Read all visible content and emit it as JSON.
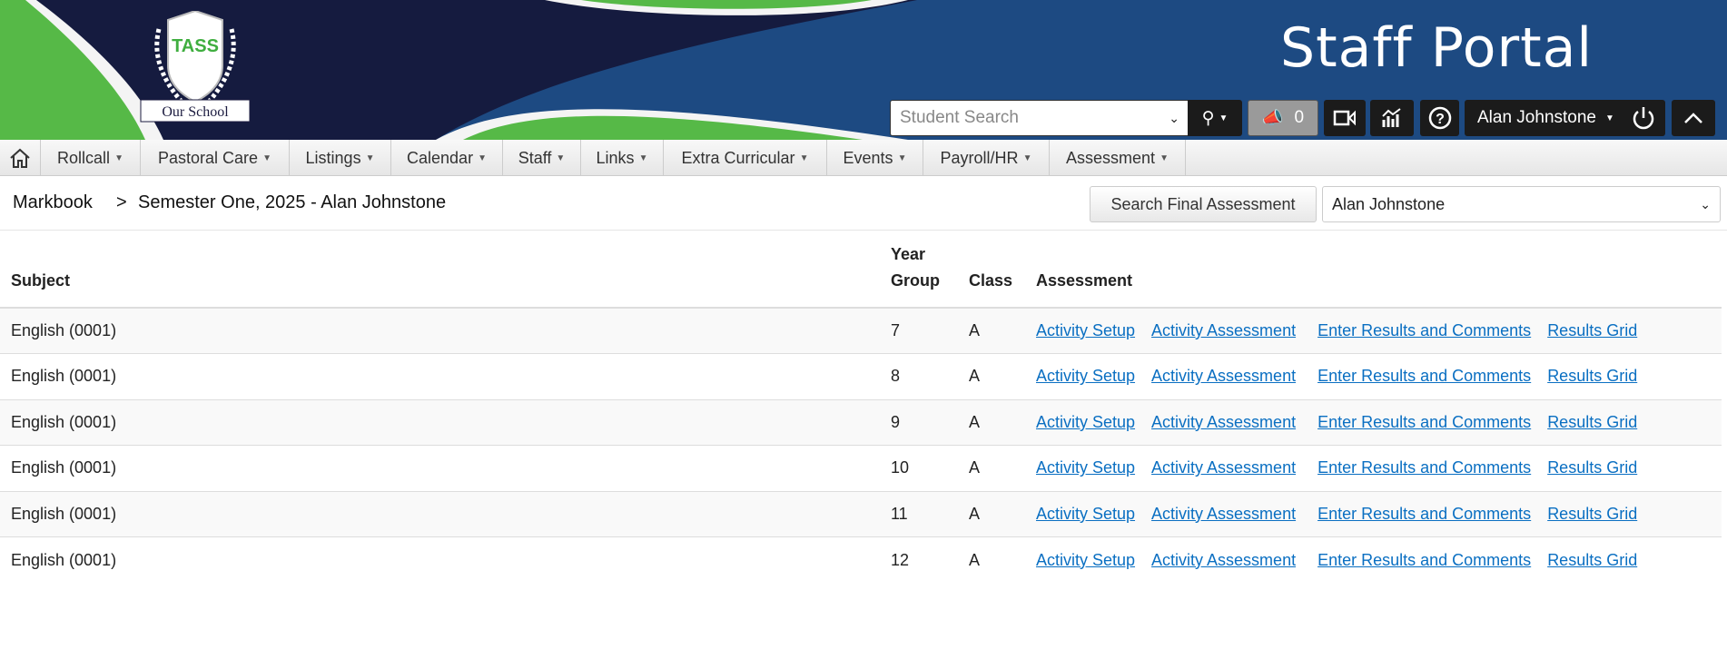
{
  "header": {
    "title": "Staff Portal",
    "logo_text": "TASS",
    "logo_banner": "Our School",
    "student_search_placeholder": "Student Search",
    "notifications_count": "0",
    "user_name": "Alan Johnstone"
  },
  "nav": {
    "items": [
      {
        "label": "Rollcall"
      },
      {
        "label": "Pastoral Care"
      },
      {
        "label": "Listings"
      },
      {
        "label": "Calendar"
      },
      {
        "label": "Staff"
      },
      {
        "label": "Links"
      },
      {
        "label": "Extra Curricular"
      },
      {
        "label": "Events"
      },
      {
        "label": "Payroll/HR"
      },
      {
        "label": "Assessment"
      }
    ]
  },
  "breadcrumb": {
    "root": "Markbook",
    "separator": ">",
    "current": "Semester One, 2025 - Alan Johnstone"
  },
  "toolbar": {
    "search_button": "Search Final Assessment",
    "staff_select": "Alan Johnstone"
  },
  "table": {
    "headers": {
      "subject": "Subject",
      "year_group": "Year Group",
      "class": "Class",
      "assessment": "Assessment"
    },
    "links": {
      "setup": "Activity Setup",
      "assessment": "Activity Assessment",
      "results": "Enter Results and Comments",
      "grid": "Results Grid"
    },
    "rows": [
      {
        "subject": "English (0001)",
        "year": "7",
        "class": "A"
      },
      {
        "subject": "English (0001)",
        "year": "8",
        "class": "A"
      },
      {
        "subject": "English (0001)",
        "year": "9",
        "class": "A"
      },
      {
        "subject": "English (0001)",
        "year": "10",
        "class": "A"
      },
      {
        "subject": "English (0001)",
        "year": "11",
        "class": "A"
      },
      {
        "subject": "English (0001)",
        "year": "12",
        "class": "A"
      }
    ]
  },
  "colors": {
    "navy": "#151b3f",
    "blue": "#1d4a82",
    "green": "#56b947",
    "link": "#0a6fc2"
  }
}
